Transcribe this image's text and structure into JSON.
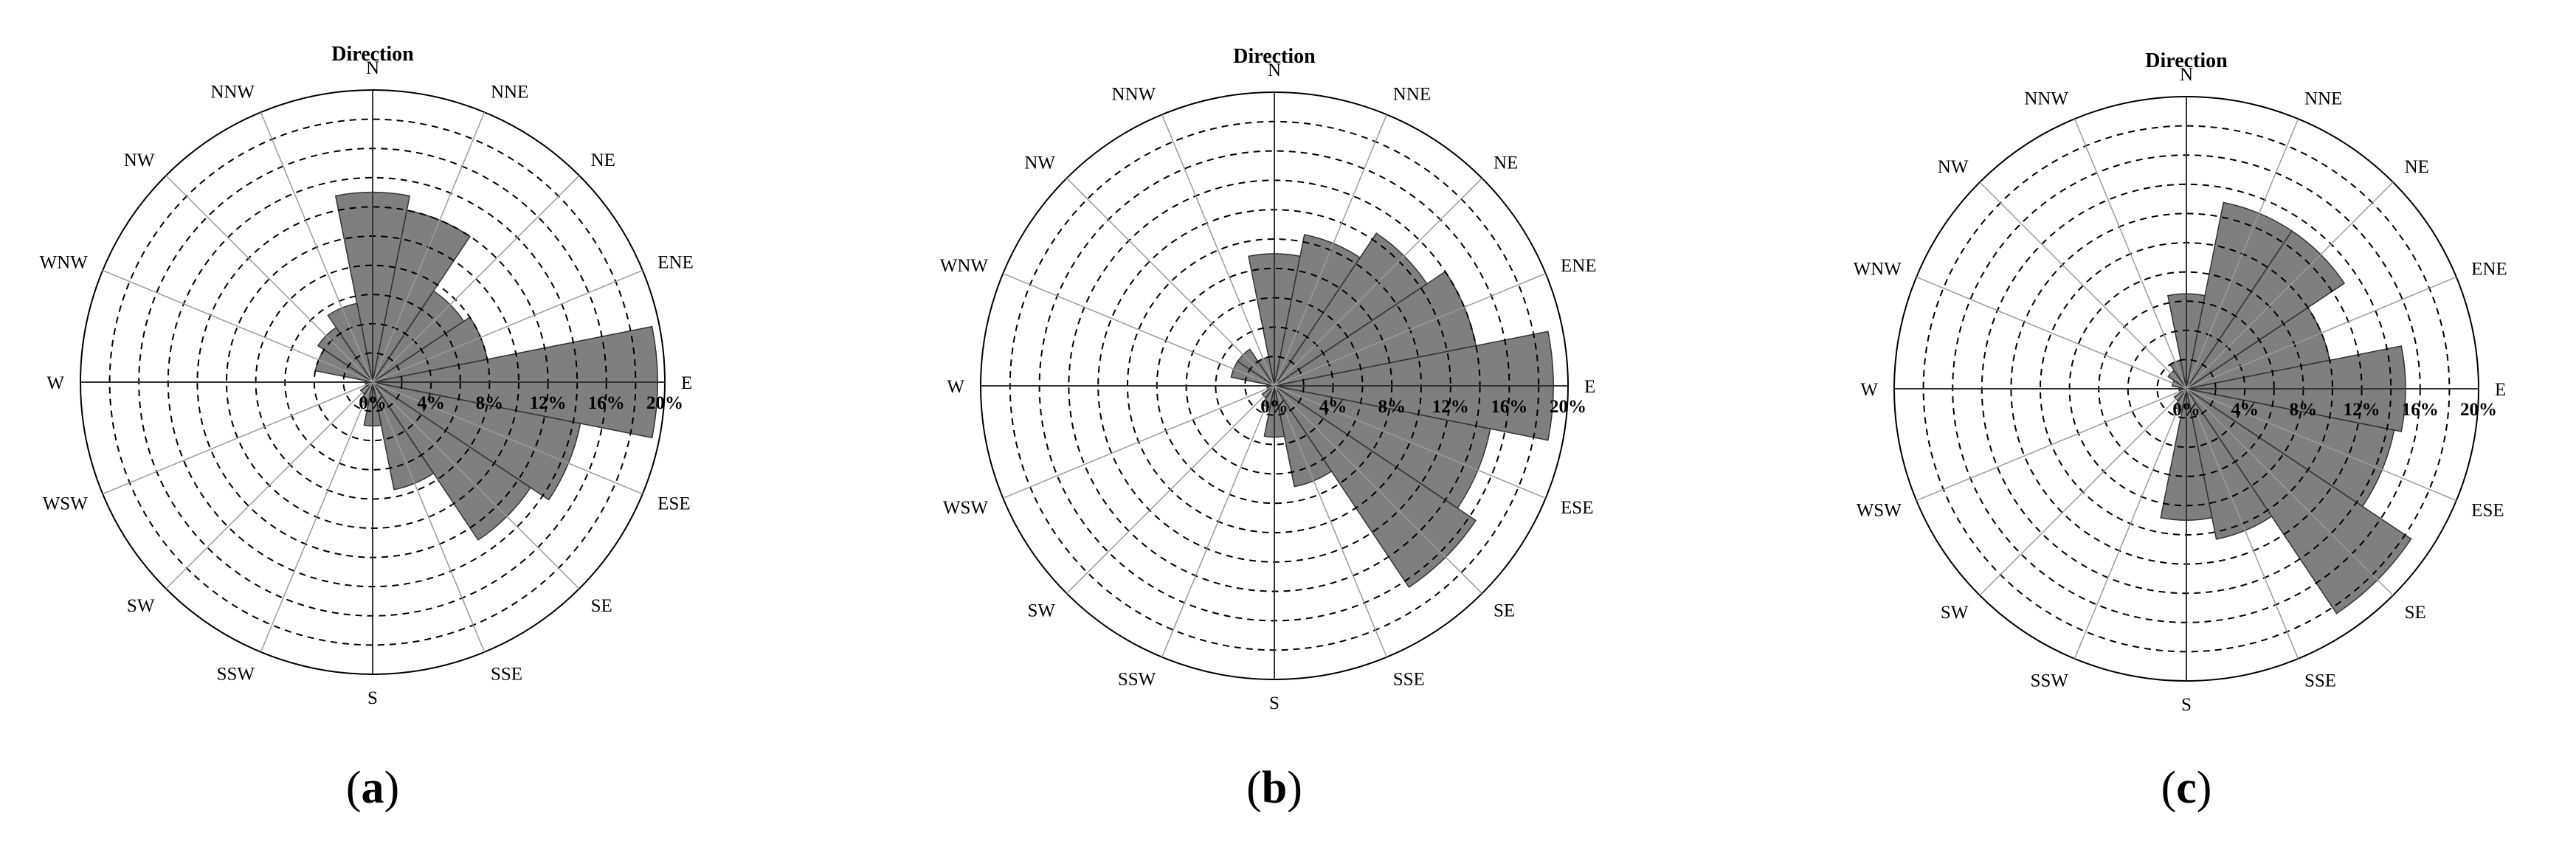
{
  "chart_data": [
    {
      "type": "windrose",
      "title": "Direction",
      "caption": {
        "open": "(",
        "letter": "a",
        "close": ")"
      },
      "directions": [
        "N",
        "NNE",
        "NE",
        "ENE",
        "E",
        "ESE",
        "SE",
        "SSE",
        "S",
        "SSW",
        "SW",
        "WSW",
        "W",
        "WNW",
        "NW",
        "NNW"
      ],
      "values": [
        13,
        12,
        7.5,
        8,
        19.5,
        14.5,
        13,
        7.5,
        3,
        1.5,
        1,
        0.5,
        0.5,
        4,
        4.5,
        5.5
      ],
      "r_ticks": [
        "0%",
        "4%",
        "8%",
        "12%",
        "16%",
        "20%"
      ],
      "rlim": [
        0,
        20
      ],
      "ring_step": 2,
      "colors": {
        "bar": "#7f7f7f",
        "bar_edge": "#333333",
        "grid": "#000000",
        "spoke": "#9a9a9a"
      }
    },
    {
      "type": "windrose",
      "title": "Direction",
      "caption": {
        "open": "(",
        "letter": "b",
        "close": ")"
      },
      "directions": [
        "N",
        "NNE",
        "NE",
        "ENE",
        "E",
        "ESE",
        "SE",
        "SSE",
        "S",
        "SSW",
        "SW",
        "WSW",
        "W",
        "WNW",
        "NW",
        "NNW"
      ],
      "values": [
        9,
        10.5,
        12.5,
        14,
        19,
        15,
        16.5,
        7,
        3.5,
        1.5,
        1,
        0.5,
        0.5,
        3,
        3,
        2
      ],
      "r_ticks": [
        "0%",
        "4%",
        "8%",
        "12%",
        "16%",
        "20%"
      ],
      "rlim": [
        0,
        20
      ],
      "ring_step": 2,
      "colors": {
        "bar": "#7f7f7f",
        "bar_edge": "#333333",
        "grid": "#000000",
        "spoke": "#9a9a9a"
      }
    },
    {
      "type": "windrose",
      "title": "Direction",
      "caption": {
        "open": "(",
        "letter": "c",
        "close": ")"
      },
      "directions": [
        "N",
        "NNE",
        "NE",
        "ENE",
        "E",
        "ESE",
        "SE",
        "SSE",
        "S",
        "SSW",
        "SW",
        "WSW",
        "W",
        "WNW",
        "NW",
        "NNW"
      ],
      "values": [
        6.5,
        13,
        13,
        10,
        15,
        14.5,
        18.5,
        10.5,
        9,
        1.5,
        1,
        0.5,
        0.5,
        1,
        1.5,
        2
      ],
      "r_ticks": [
        "0%",
        "4%",
        "8%",
        "12%",
        "16%",
        "20%"
      ],
      "rlim": [
        0,
        20
      ],
      "ring_step": 2,
      "colors": {
        "bar": "#7f7f7f",
        "bar_edge": "#333333",
        "grid": "#000000",
        "spoke": "#9a9a9a"
      }
    }
  ]
}
